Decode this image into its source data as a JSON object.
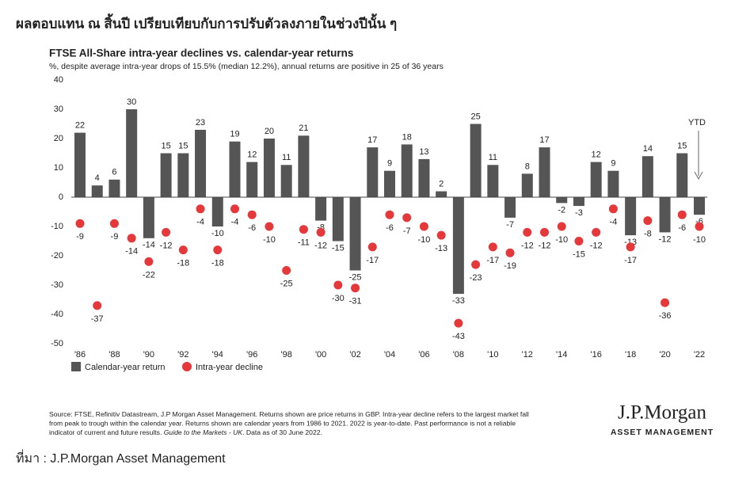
{
  "header": {
    "title": "ผลตอบแทน ณ สิ้นปี เปรียบเทียบกับการปรับตัวลงภายในช่วงปีนั้น ๆ"
  },
  "chart_data": {
    "type": "bar",
    "title": "FTSE All-Share intra-year declines vs. calendar-year returns",
    "subtitle": "%, despite average intra-year drops of 15.5% (median 12.2%), annual returns are positive in 25 of 36 years",
    "annotation": "YTD",
    "categories": [
      "'86",
      null,
      "'88",
      null,
      "'90",
      null,
      "'92",
      null,
      "'94",
      null,
      "'96",
      null,
      "'98",
      null,
      "'00",
      null,
      "'02",
      null,
      "'04",
      null,
      "'06",
      null,
      "'08",
      null,
      "'10",
      null,
      "'12",
      null,
      "'14",
      null,
      "'16",
      null,
      "'18",
      null,
      "'20",
      null,
      "'22"
    ],
    "series": [
      {
        "name": "Calendar-year return",
        "color": "#555555",
        "marker": "bar",
        "values": [
          22,
          4,
          6,
          30,
          -14,
          15,
          15,
          23,
          -10,
          19,
          12,
          20,
          11,
          21,
          -8,
          -15,
          -25,
          17,
          9,
          18,
          13,
          2,
          -33,
          25,
          11,
          -7,
          8,
          17,
          -2,
          -3,
          12,
          9,
          -13,
          14,
          -12,
          15,
          -6
        ]
      },
      {
        "name": "Intra-year decline",
        "color": "#e5383b",
        "marker": "dot",
        "values": [
          -9,
          -37,
          -9,
          -14,
          -22,
          -12,
          -18,
          -4,
          -18,
          -4,
          -6,
          -10,
          -25,
          -11,
          -12,
          -30,
          -31,
          -17,
          -6,
          -7,
          -10,
          -13,
          -43,
          -23,
          -17,
          -19,
          -12,
          -12,
          -10,
          -15,
          -12,
          -4,
          -17,
          -8,
          -36,
          -6,
          -10
        ]
      }
    ],
    "ylim": [
      -50,
      40
    ],
    "yticks": [
      40,
      30,
      20,
      10,
      0,
      -10,
      -20,
      -30,
      -40,
      -50
    ],
    "grid": false
  },
  "source": {
    "lines": [
      [
        "Source: FTSE, Refinitiv Datastream, J.P Morgan Asset Management. Returns shown are price returns in GBP. Intra-year decline refers to the largest market fall"
      ],
      [
        "from peak to trough within the calendar year. Returns shown are calendar years from 1986 to 2021. 2022 is year-to-date. Past performance is not a reliable"
      ],
      [
        "indicator of current and future results. ",
        "Guide to the Markets - UK",
        ". Data as of 30 June 2022."
      ]
    ]
  },
  "logo": {
    "name": "J.P.Morgan",
    "tagline": "ASSET MANAGEMENT"
  },
  "footer": {
    "text": "ที่มา : J.P.Morgan Asset Management"
  }
}
